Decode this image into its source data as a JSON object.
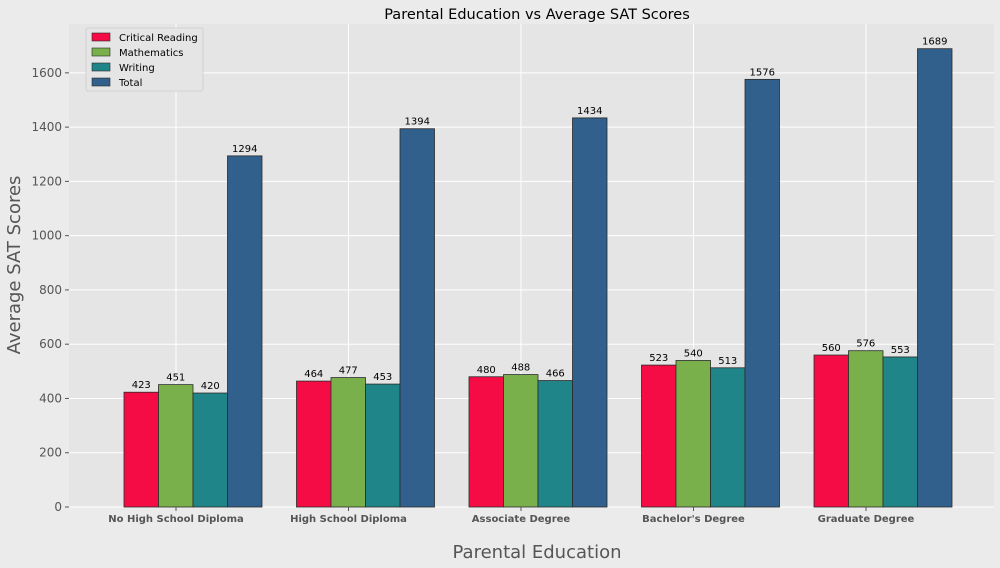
{
  "chart_data": {
    "type": "bar",
    "title": "Parental Education vs Average SAT Scores",
    "xlabel": "Parental Education",
    "ylabel": "Average SAT Scores",
    "ylim": [
      0,
      1780
    ],
    "yticks": [
      0,
      200,
      400,
      600,
      800,
      1000,
      1200,
      1400,
      1600
    ],
    "grid": true,
    "legend_position": "top-left",
    "categories": [
      "No High School Diploma",
      "High School Diploma",
      "Associate Degree",
      "Bachelor's Degree",
      "Graduate Degree"
    ],
    "series": [
      {
        "name": "Critical Reading",
        "color": "#f50c45",
        "values": [
          423,
          464,
          480,
          523,
          560
        ]
      },
      {
        "name": "Mathematics",
        "color": "#79b04c",
        "values": [
          451,
          477,
          488,
          540,
          576
        ]
      },
      {
        "name": "Writing",
        "color": "#1f8588",
        "values": [
          420,
          453,
          466,
          513,
          553
        ]
      },
      {
        "name": "Total",
        "color": "#30608b",
        "values": [
          1294,
          1394,
          1434,
          1576,
          1689
        ]
      }
    ]
  }
}
